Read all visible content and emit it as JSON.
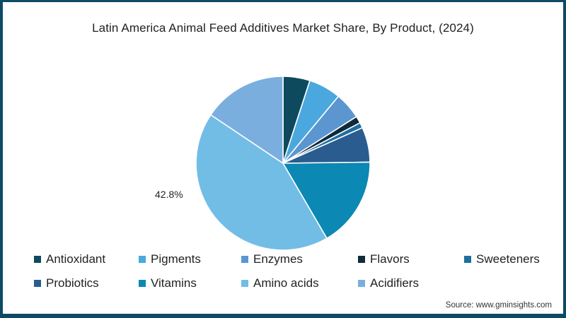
{
  "title": "Latin America Animal Feed Additives Market Share, By Product, (2024)",
  "source": "Source: www.gminsights.com",
  "pie_label": "42.8%",
  "legend": [
    {
      "label": "Antioxidant",
      "color": "#0d4a5e"
    },
    {
      "label": "Pigments",
      "color": "#4aa8de"
    },
    {
      "label": "Enzymes",
      "color": "#5b96d0"
    },
    {
      "label": "Flavors",
      "color": "#0f2a3a"
    },
    {
      "label": "Sweeteners",
      "color": "#1e6fa0"
    },
    {
      "label": "Probiotics",
      "color": "#2a5c8f"
    },
    {
      "label": "Vitamins",
      "color": "#0b88b4"
    },
    {
      "label": "Amino acids",
      "color": "#72bde6"
    },
    {
      "label": "Acidifiers",
      "color": "#7aaede"
    }
  ],
  "chart_data": {
    "type": "pie",
    "title": "Latin America Animal Feed Additives Market Share, By Product, (2024)",
    "categories": [
      "Antioxidant",
      "Pigments",
      "Enzymes",
      "Flavors",
      "Sweeteners",
      "Probiotics",
      "Vitamins",
      "Amino acids",
      "Acidifiers"
    ],
    "values": [
      5.0,
      6.0,
      5.0,
      1.3,
      1.0,
      6.5,
      16.8,
      42.8,
      15.6
    ],
    "colors": [
      "#0d4a5e",
      "#4aa8de",
      "#5b96d0",
      "#0f2a3a",
      "#1e6fa0",
      "#2a5c8f",
      "#0b88b4",
      "#72bde6",
      "#7aaede"
    ],
    "annotations": [
      {
        "label": "42.8%",
        "category": "Amino acids"
      }
    ],
    "start_angle": "12 o'clock, clockwise",
    "legend_position": "bottom",
    "units": "%"
  }
}
